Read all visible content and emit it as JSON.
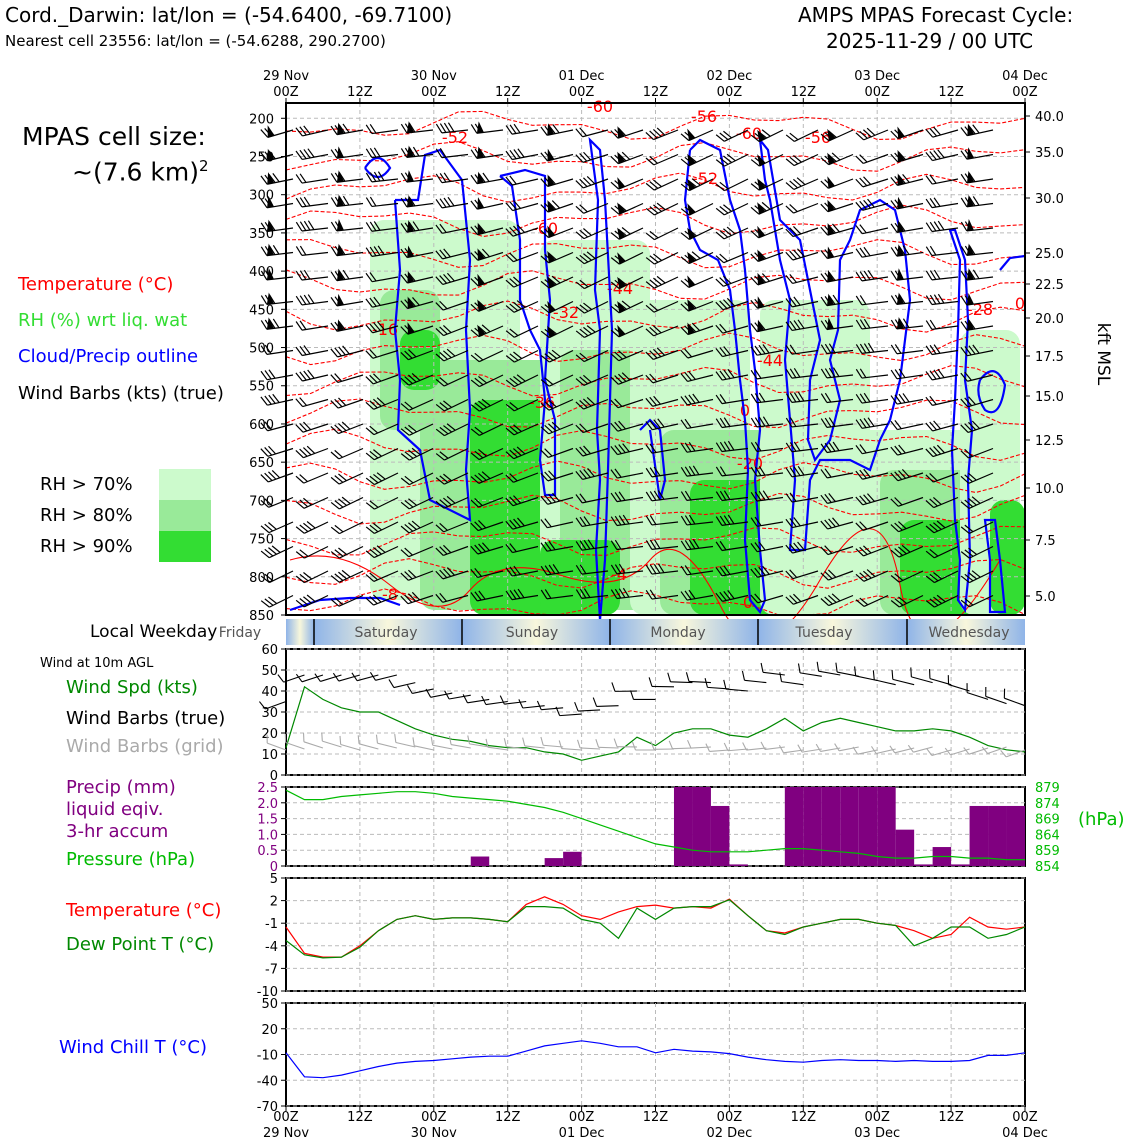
{
  "header": {
    "location": "Cord._Darwin: lat/lon = (-54.6400, -69.7100)",
    "nearest_cell": "Nearest cell 23556: lat/lon = (-54.6288, 290.2700)",
    "cycle_title": "AMPS MPAS Forecast Cycle:",
    "cycle_time": "2025-11-29 / 00 UTC"
  },
  "colors": {
    "temperature": "#ff0000",
    "rh_label": "#33dd33",
    "cloud": "#0000ff",
    "wind_speed": "#008800",
    "grid_barb": "#aaaaaa",
    "precip": "#800080",
    "pressure": "#00bb00",
    "dewpoint": "#008800",
    "wind_chill": "#0000ff",
    "rh70": "#ccfacc",
    "rh80": "#99ea99",
    "rh90": "#33dd33"
  },
  "left_panel": {
    "cell_size_line1": "MPAS cell size:",
    "cell_size_line2": "~(7.6 km)",
    "cell_size_sup": "2",
    "legend_temp": "Temperature (°C)",
    "legend_rh": "RH (%) wrt liq. wat",
    "legend_cloud": "Cloud/Precip outline",
    "legend_wind": "Wind Barbs (kts) (true)",
    "rh_levels": [
      "RH > 70%",
      "RH > 80%",
      "RH > 90%"
    ]
  },
  "weekday_bar": {
    "label": "Local Weekday",
    "days": [
      "Friday",
      "Saturday",
      "Sunday",
      "Monday",
      "Tuesday",
      "Wednesday"
    ]
  },
  "surface_panels": {
    "wind_title": "Wind at 10m AGL",
    "wind_spd": "Wind Spd (kts)",
    "wind_true": "Wind Barbs (true)",
    "wind_grid": "Wind Barbs (grid)",
    "precip_line1": "Precip (mm)",
    "precip_line2": "liquid eqiv.",
    "precip_line3": "3-hr accum",
    "pressure": "Pressure (hPa)",
    "hpa_unit": "(hPa)",
    "temp": "Temperature (°C)",
    "dewpoint": "Dew Point T (°C)",
    "wind_chill": "Wind Chill T (°C)"
  },
  "chart_data": [
    {
      "type": "heatmap",
      "title": "",
      "x_ticks_top": [
        "29 Nov\n00Z",
        "12Z",
        "30 Nov\n00Z",
        "12Z",
        "01 Dec\n00Z",
        "12Z",
        "02 Dec\n00Z",
        "12Z",
        "03 Dec\n00Z",
        "12Z",
        "04 Dec\n00Z"
      ],
      "ylabel_left": "",
      "y_ticks_hpa": [
        "200",
        "250",
        "300",
        "350",
        "400",
        "450",
        "500",
        "550",
        "600",
        "650",
        "700",
        "750",
        "800",
        "850"
      ],
      "ylabel_right": "kft MSL",
      "y_ticks_kft": [
        "40.0",
        "35.0",
        "30.0",
        "25.0",
        "22.5",
        "20.0",
        "17.5",
        "15.0",
        "12.5",
        "10.0",
        "7.5",
        "5.0"
      ],
      "temperature_contour_labels": [
        "-60",
        "-56",
        "-60",
        "-56",
        "-52",
        "-52",
        "-60",
        "-44",
        "-32",
        "-28",
        "-44",
        "-36",
        "-20",
        "-16",
        "-8",
        "-4",
        "0",
        "0",
        "0",
        "-4"
      ]
    },
    {
      "type": "line",
      "ylim": [
        0,
        60
      ],
      "yticks": [
        "0",
        "10",
        "20",
        "30",
        "40",
        "50",
        "60"
      ],
      "x_hours": [
        0,
        3,
        6,
        9,
        12,
        15,
        18,
        21,
        24,
        27,
        30,
        33,
        36,
        39,
        42,
        45,
        48,
        51,
        54,
        57,
        60,
        63,
        66,
        69,
        72,
        75,
        78,
        81,
        84,
        87,
        90,
        93,
        96,
        99,
        102,
        105,
        108,
        111,
        114,
        117,
        120
      ],
      "series": [
        {
          "name": "Wind Spd (kts)",
          "values": [
            13,
            42,
            36,
            32,
            30,
            30,
            26,
            22,
            19,
            17,
            16,
            14,
            13,
            13,
            11,
            10,
            7,
            9,
            11,
            18,
            14,
            20,
            22,
            22,
            19,
            18,
            22,
            27,
            21,
            25,
            27,
            25,
            23,
            21,
            21,
            22,
            21,
            18,
            14,
            12,
            11
          ]
        }
      ]
    },
    {
      "type": "bar",
      "ylim": [
        0,
        2.5
      ],
      "yticks": [
        "0",
        "0.5",
        "1.0",
        "1.5",
        "2.0",
        "2.5"
      ],
      "right_ticks": [
        "854",
        "859",
        "864",
        "869",
        "874",
        "879"
      ],
      "precip_x_hours": [
        33,
        45,
        48,
        66,
        69,
        72,
        75,
        84,
        87,
        90,
        93,
        96,
        99,
        102,
        105,
        108,
        111,
        114,
        117,
        120
      ],
      "precip_values": [
        0.3,
        0.25,
        0.45,
        2.5,
        2.5,
        1.9,
        0.05,
        2.5,
        2.5,
        2.5,
        2.5,
        2.5,
        2.5,
        1.15,
        0.05,
        0.6,
        0.05,
        1.9,
        1.9,
        1.9
      ],
      "series": [
        {
          "name": "Pressure (hPa)",
          "values": [
            878,
            875,
            875,
            876,
            876.5,
            877,
            877.5,
            877.5,
            877,
            876,
            875.5,
            875,
            874.5,
            873.5,
            872.5,
            871,
            869,
            867,
            865,
            863,
            861,
            860,
            859,
            858.5,
            858.5,
            858.5,
            859,
            859.5,
            859.5,
            859,
            858.5,
            858,
            857,
            856.5,
            856.5,
            857,
            857,
            856.5,
            856.5,
            856,
            856
          ]
        }
      ]
    },
    {
      "type": "line",
      "ylim": [
        -10,
        5
      ],
      "yticks": [
        "-10",
        "-7",
        "-4",
        "-1",
        "2",
        "5"
      ],
      "series": [
        {
          "name": "Temperature (°C)",
          "values": [
            -1.5,
            -5,
            -5.5,
            -5.5,
            -4,
            -2,
            -0.5,
            0,
            -0.5,
            -0.3,
            -0.3,
            -0.5,
            -0.8,
            1.5,
            2.5,
            1.5,
            0,
            -0.5,
            0.5,
            1.2,
            1.4,
            1.0,
            1.2,
            1.0,
            2.2,
            0,
            -2,
            -2.3,
            -1.5,
            -1,
            -0.5,
            -0.5,
            -1,
            -1.3,
            -2,
            -3,
            -2.5,
            -0.2,
            -1.5,
            -1.8,
            -1.5
          ]
        },
        {
          "name": "Dew Point T (°C)",
          "values": [
            -3.3,
            -5.2,
            -5.6,
            -5.5,
            -4.2,
            -2,
            -0.5,
            0,
            -0.5,
            -0.3,
            -0.3,
            -0.5,
            -0.8,
            1.2,
            1.2,
            1.0,
            -0.5,
            -1,
            -3,
            1.0,
            -0.5,
            1.0,
            1.2,
            1.2,
            2.1,
            0,
            -2,
            -2.5,
            -1.5,
            -1,
            -0.5,
            -0.5,
            -1,
            -1.3,
            -4,
            -3,
            -1.5,
            -1.5,
            -3,
            -2.5,
            -1.5
          ]
        }
      ]
    },
    {
      "type": "line",
      "ylim": [
        -70,
        50
      ],
      "yticks": [
        "-70",
        "-40",
        "-10",
        "20",
        "50"
      ],
      "x_ticks_bottom": [
        "00Z\n29 Nov",
        "12Z",
        "00Z\n30 Nov",
        "12Z",
        "00Z\n01 Dec",
        "12Z",
        "00Z\n02 Dec",
        "12Z",
        "00Z\n03 Dec",
        "12Z",
        "00Z\n04 Dec"
      ],
      "series": [
        {
          "name": "Wind Chill T (°C)",
          "values": [
            -8,
            -36,
            -37,
            -34,
            -29,
            -24,
            -20,
            -18,
            -17,
            -15,
            -13,
            -12,
            -12,
            -6,
            0,
            3,
            6,
            3,
            -1,
            -1,
            -8,
            -4,
            -6,
            -7,
            -9,
            -13,
            -16,
            -18,
            -19,
            -17,
            -16,
            -17,
            -17,
            -18,
            -17,
            -18,
            -18,
            -17,
            -11,
            -11,
            -8
          ]
        }
      ]
    }
  ]
}
